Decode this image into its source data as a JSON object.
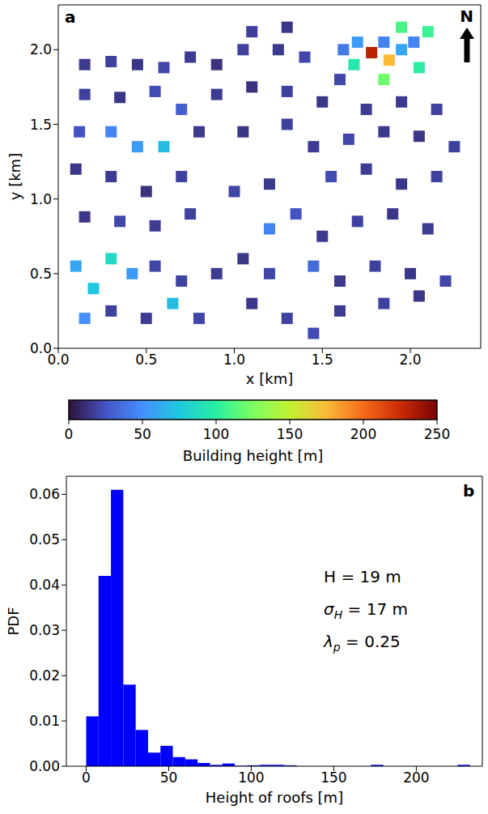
{
  "chart_data": [
    {
      "type": "scatter",
      "panel_label": "a",
      "marker": "square",
      "xlabel": "x [km]",
      "ylabel": "y [km]",
      "north_label": "N",
      "xlim": [
        0,
        2.4
      ],
      "ylim": [
        0,
        2.3
      ],
      "xticks": [
        {
          "value": 0,
          "label": "0.0"
        },
        {
          "value": 0.5,
          "label": "0.5"
        },
        {
          "value": 1,
          "label": "1.0"
        },
        {
          "value": 1.5,
          "label": "1.5"
        },
        {
          "value": 2,
          "label": "2.0"
        }
      ],
      "yticks": [
        {
          "value": 0,
          "label": "0.0"
        },
        {
          "value": 0.5,
          "label": "0.5"
        },
        {
          "value": 1,
          "label": "1.0"
        },
        {
          "value": 1.5,
          "label": "1.5"
        },
        {
          "value": 2,
          "label": "2.0"
        }
      ],
      "x": [
        0.15,
        0.3,
        0.45,
        0.6,
        0.75,
        0.9,
        1.05,
        1.25,
        1.4,
        1.3,
        1.1,
        1.62,
        1.7,
        1.78,
        1.85,
        1.88,
        1.95,
        2.02,
        1.95,
        1.68,
        1.85,
        2.05,
        2.1,
        0.15,
        0.35,
        0.55,
        0.7,
        0.9,
        1.1,
        1.3,
        1.5,
        1.6,
        1.75,
        1.95,
        2.15,
        0.12,
        0.3,
        0.45,
        0.6,
        0.8,
        1.05,
        1.3,
        1.45,
        1.65,
        1.85,
        2.05,
        2.25,
        0.1,
        0.3,
        0.5,
        0.7,
        1.0,
        1.2,
        1.55,
        1.75,
        1.95,
        2.15,
        0.15,
        0.35,
        0.55,
        0.75,
        1.2,
        1.35,
        1.5,
        1.7,
        1.9,
        2.1,
        0.1,
        0.2,
        0.3,
        0.42,
        0.55,
        0.7,
        0.9,
        1.05,
        1.2,
        1.45,
        1.6,
        1.8,
        2.0,
        2.2,
        0.15,
        0.3,
        0.5,
        0.65,
        0.8,
        1.1,
        1.3,
        1.45,
        1.6,
        1.85,
        2.05
      ],
      "y": [
        1.9,
        1.92,
        1.9,
        1.88,
        1.95,
        1.9,
        2.0,
        2.0,
        1.95,
        2.15,
        2.12,
        2.0,
        2.05,
        1.98,
        2.05,
        1.93,
        2.0,
        2.05,
        2.15,
        1.9,
        1.8,
        1.88,
        2.12,
        1.7,
        1.68,
        1.72,
        1.6,
        1.7,
        1.75,
        1.72,
        1.65,
        1.8,
        1.6,
        1.65,
        1.6,
        1.45,
        1.45,
        1.35,
        1.35,
        1.45,
        1.45,
        1.5,
        1.35,
        1.4,
        1.45,
        1.42,
        1.35,
        1.2,
        1.15,
        1.05,
        1.15,
        1.05,
        1.1,
        1.15,
        1.2,
        1.1,
        1.15,
        0.88,
        0.85,
        0.82,
        0.9,
        0.8,
        0.9,
        0.75,
        0.85,
        0.9,
        0.8,
        0.55,
        0.4,
        0.6,
        0.5,
        0.55,
        0.45,
        0.5,
        0.6,
        0.5,
        0.55,
        0.45,
        0.55,
        0.5,
        0.45,
        0.2,
        0.25,
        0.2,
        0.3,
        0.2,
        0.3,
        0.2,
        0.1,
        0.25,
        0.3,
        0.35
      ],
      "height": [
        15,
        18,
        14,
        20,
        16,
        12,
        18,
        15,
        20,
        14,
        17,
        40,
        55,
        230,
        45,
        175,
        60,
        45,
        110,
        95,
        120,
        100,
        105,
        18,
        14,
        22,
        30,
        16,
        12,
        18,
        14,
        20,
        16,
        15,
        18,
        25,
        45,
        55,
        70,
        15,
        14,
        18,
        16,
        20,
        15,
        14,
        18,
        14,
        16,
        12,
        18,
        20,
        15,
        22,
        16,
        14,
        18,
        14,
        20,
        16,
        18,
        45,
        25,
        15,
        18,
        14,
        16,
        60,
        75,
        85,
        55,
        20,
        18,
        16,
        14,
        20,
        35,
        15,
        18,
        14,
        20,
        50,
        18,
        16,
        70,
        20,
        14,
        18,
        22,
        16,
        18,
        14
      ],
      "colorbar": {
        "label": "Building height [m]",
        "range": [
          0,
          250
        ],
        "ticks": [
          0,
          50,
          100,
          150,
          200,
          250
        ]
      }
    },
    {
      "type": "histogram",
      "panel_label": "b",
      "xlabel": "Height of roofs [m]",
      "ylabel": "PDF",
      "color": "#0000ff",
      "xlim": [
        -12,
        240
      ],
      "ylim": [
        0,
        0.064
      ],
      "xticks": [
        0,
        50,
        100,
        150,
        200
      ],
      "yticks": [
        {
          "value": 0,
          "label": "0.00"
        },
        {
          "value": 0.01,
          "label": "0.01"
        },
        {
          "value": 0.02,
          "label": "0.02"
        },
        {
          "value": 0.03,
          "label": "0.03"
        },
        {
          "value": 0.04,
          "label": "0.04"
        },
        {
          "value": 0.05,
          "label": "0.05"
        },
        {
          "value": 0.06,
          "label": "0.06"
        }
      ],
      "bins": [
        0,
        7.5,
        15,
        22.5,
        30,
        37.5,
        45,
        52.5,
        60,
        67.5,
        75,
        82.5,
        90,
        97.5,
        105,
        112.5,
        120,
        127.5,
        135,
        142.5,
        150,
        157.5,
        165,
        172.5,
        180,
        187.5,
        195,
        202.5,
        210,
        217.5,
        225,
        232.5
      ],
      "counts": [
        0.011,
        0.042,
        0.061,
        0.018,
        0.008,
        0.003,
        0.0045,
        0.002,
        0.0015,
        0.0007,
        0.0003,
        0.0006,
        0.0001,
        0.0002,
        0.0003,
        0.0003,
        0.0002,
        0,
        0,
        0,
        0,
        0,
        0,
        0.0003,
        0,
        0,
        0,
        0,
        0,
        0,
        0.0003
      ],
      "annotations": [
        {
          "name": "H",
          "text": "= 19 m"
        },
        {
          "name": "σ",
          "subscript": "H",
          "text": "= 17 m"
        },
        {
          "name": "λ",
          "subscript": "p",
          "text": "= 0.25"
        }
      ]
    }
  ]
}
